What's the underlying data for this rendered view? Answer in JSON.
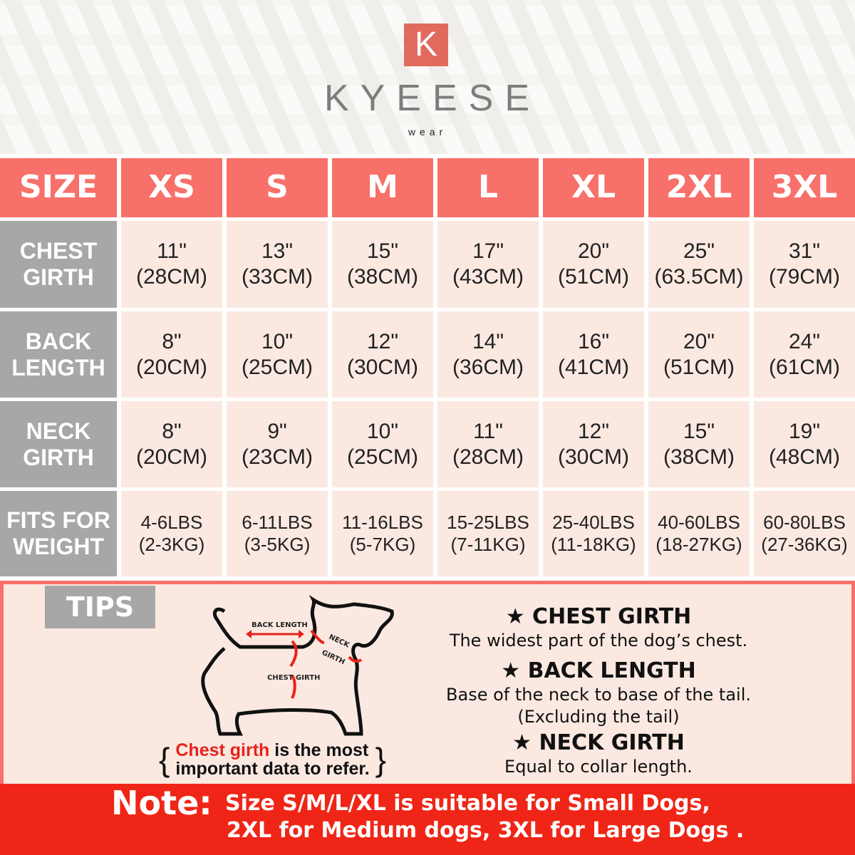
{
  "brand": {
    "logo_letter": "K",
    "name": "KYEESE",
    "sub": "wear",
    "accent": "#f8706a",
    "label_gray": "#a7a7a7"
  },
  "table": {
    "header": [
      "SIZE",
      "XS",
      "S",
      "M",
      "L",
      "XL",
      "2XL",
      "3XL"
    ],
    "rows": [
      {
        "label": [
          "CHEST",
          "GIRTH"
        ],
        "values": [
          [
            "11\"",
            "(28CM)"
          ],
          [
            "13\"",
            "(33CM)"
          ],
          [
            "15\"",
            "(38CM)"
          ],
          [
            "17\"",
            "(43CM)"
          ],
          [
            "20\"",
            "(51CM)"
          ],
          [
            "25\"",
            "(63.5CM)"
          ],
          [
            "31\"",
            "(79CM)"
          ]
        ]
      },
      {
        "label": [
          "BACK",
          "LENGTH"
        ],
        "values": [
          [
            "8\"",
            "(20CM)"
          ],
          [
            "10\"",
            "(25CM)"
          ],
          [
            "12\"",
            "(30CM)"
          ],
          [
            "14\"",
            "(36CM)"
          ],
          [
            "16\"",
            "(41CM)"
          ],
          [
            "20\"",
            "(51CM)"
          ],
          [
            "24\"",
            "(61CM)"
          ]
        ]
      },
      {
        "label": [
          "NECK",
          "GIRTH"
        ],
        "values": [
          [
            "8\"",
            "(20CM)"
          ],
          [
            "9\"",
            "(23CM)"
          ],
          [
            "10\"",
            "(25CM)"
          ],
          [
            "11\"",
            "(28CM)"
          ],
          [
            "12\"",
            "(30CM)"
          ],
          [
            "15\"",
            "(38CM)"
          ],
          [
            "19\"",
            "(48CM)"
          ]
        ]
      },
      {
        "label": [
          "FITS FOR",
          "WEIGHT"
        ],
        "values": [
          [
            "4-6LBS",
            "(2-3KG)"
          ],
          [
            "6-11LBS",
            "(3-5KG)"
          ],
          [
            "11-16LBS",
            "(5-7KG)"
          ],
          [
            "15-25LBS",
            "(7-11KG)"
          ],
          [
            "25-40LBS",
            "(11-18KG)"
          ],
          [
            "40-60LBS",
            "(18-27KG)"
          ],
          [
            "60-80LBS",
            "(27-36KG)"
          ]
        ]
      }
    ]
  },
  "tips": {
    "label": "TIPS",
    "diagram": {
      "back": "BACK LENGTH",
      "neck1": "NECK",
      "neck2": "GIRTH",
      "chest": "CHEST GIRTH"
    },
    "important": {
      "red": "Chest girth",
      "rest1": " is the most",
      "line2": "important data to refer."
    },
    "items": [
      {
        "title": "CHEST GIRTH",
        "lines": [
          "The widest part of the dog’s chest."
        ]
      },
      {
        "title": "BACK LENGTH",
        "lines": [
          "Base of the neck to base of the tail.",
          "(Excluding the tail)"
        ]
      },
      {
        "title": "NECK GIRTH",
        "lines": [
          "Equal to collar length."
        ]
      }
    ]
  },
  "note": {
    "label": "Note:",
    "line1": "Size S/M/L/XL is suitable for Small Dogs,",
    "line2": "2XL for Medium dogs, 3XL for Large Dogs ."
  }
}
